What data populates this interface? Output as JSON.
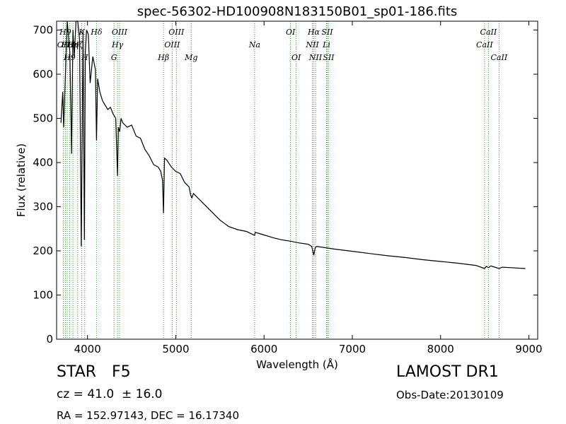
{
  "chart_data": {
    "type": "line",
    "title": "spec-56302-HD100908N183150B01_sp01-186.fits",
    "xlabel": "Wavelength (Å)",
    "ylabel": "Flux (relative)",
    "xlim": [
      3650,
      9100
    ],
    "ylim": [
      0,
      720
    ],
    "xticks": [
      4000,
      5000,
      6000,
      7000,
      8000,
      9000
    ],
    "yticks": [
      0,
      100,
      200,
      300,
      400,
      500,
      600,
      700
    ],
    "grid": false,
    "line_color": "#000000",
    "marker_color": "#2ca02c",
    "series": [
      {
        "x": [
          3700,
          3720,
          3730,
          3750,
          3770,
          3800,
          3820,
          3835,
          3850,
          3870,
          3890,
          3910,
          3930,
          3950,
          3965,
          3975,
          3990,
          4010,
          4030,
          4060,
          4090,
          4102,
          4115,
          4140,
          4170,
          4200,
          4230,
          4260,
          4290,
          4320,
          4340,
          4350,
          4365,
          4380,
          4400,
          4450,
          4500,
          4550,
          4600,
          4650,
          4700,
          4750,
          4800,
          4830,
          4850,
          4861,
          4872,
          4900,
          4950,
          5000,
          5050,
          5100,
          5150,
          5170,
          5183,
          5200,
          5250,
          5300,
          5400,
          5500,
          5600,
          5700,
          5800,
          5893,
          5900,
          6000,
          6100,
          6200,
          6300,
          6400,
          6500,
          6540,
          6563,
          6580,
          6600,
          6700,
          6800,
          7000,
          7200,
          7400,
          7600,
          7800,
          8000,
          8200,
          8400,
          8498,
          8520,
          8542,
          8570,
          8600,
          8662,
          8700,
          8800,
          8960
        ],
        "y": [
          490,
          560,
          480,
          600,
          720,
          650,
          420,
          700,
          640,
          720,
          720,
          680,
          210,
          700,
          225,
          650,
          700,
          690,
          580,
          640,
          610,
          450,
          590,
          560,
          540,
          530,
          520,
          525,
          510,
          500,
          370,
          480,
          470,
          500,
          490,
          480,
          485,
          460,
          455,
          430,
          415,
          395,
          390,
          380,
          360,
          285,
          410,
          405,
          390,
          380,
          375,
          355,
          345,
          325,
          320,
          330,
          320,
          310,
          290,
          270,
          255,
          248,
          244,
          235,
          242,
          236,
          230,
          225,
          222,
          218,
          215,
          210,
          190,
          208,
          210,
          207,
          204,
          199,
          194,
          189,
          185,
          180,
          176,
          172,
          167,
          160,
          165,
          162,
          166,
          164,
          160,
          163,
          162,
          160
        ]
      }
    ],
    "line_markers": [
      {
        "wl": 3727,
        "label": "OII",
        "row": 1
      },
      {
        "wl": 3750,
        "label": "H9",
        "row": 0
      },
      {
        "wl": 3771,
        "label": "H8",
        "row": 1
      },
      {
        "wl": 3798,
        "label": "H9",
        "row": 2
      },
      {
        "wl": 3835,
        "label": "Hη",
        "row": 1
      },
      {
        "wl": 3889,
        "label": "Hζ",
        "row": 1
      },
      {
        "wl": 3934,
        "label": "K",
        "row": 0
      },
      {
        "wl": 3969,
        "label": "H",
        "row": 2
      },
      {
        "wl": 4102,
        "label": "Hδ",
        "row": 0
      },
      {
        "wl": 4300,
        "label": "G",
        "row": 2
      },
      {
        "wl": 4340,
        "label": "Hγ",
        "row": 1
      },
      {
        "wl": 4363,
        "label": "OIII",
        "row": 0
      },
      {
        "wl": 4861,
        "label": "Hβ",
        "row": 2
      },
      {
        "wl": 4959,
        "label": "OIII",
        "row": 1
      },
      {
        "wl": 5007,
        "label": "OIII",
        "row": 0
      },
      {
        "wl": 5175,
        "label": "Mg",
        "row": 2
      },
      {
        "wl": 5893,
        "label": "Na",
        "row": 1
      },
      {
        "wl": 6300,
        "label": "OI",
        "row": 0
      },
      {
        "wl": 6364,
        "label": "OI",
        "row": 2
      },
      {
        "wl": 6548,
        "label": "NII",
        "row": 1
      },
      {
        "wl": 6563,
        "label": "Hα",
        "row": 0
      },
      {
        "wl": 6583,
        "label": "NII",
        "row": 2
      },
      {
        "wl": 6708,
        "label": "Li",
        "row": 1
      },
      {
        "wl": 6716,
        "label": "SII",
        "row": 0
      },
      {
        "wl": 6731,
        "label": "SII",
        "row": 2
      },
      {
        "wl": 8498,
        "label": "CaII",
        "row": 1
      },
      {
        "wl": 8542,
        "label": "CaII",
        "row": 0
      },
      {
        "wl": 8662,
        "label": "CaII",
        "row": 2
      }
    ]
  },
  "info": {
    "class_label": "STAR",
    "subclass": "F5",
    "survey": "LAMOST DR1",
    "cz": "cz = 41.0  ± 16.0",
    "obs_date": "Obs-Date:20130109",
    "coords": "RA = 152.97143, DEC = 16.17340"
  }
}
